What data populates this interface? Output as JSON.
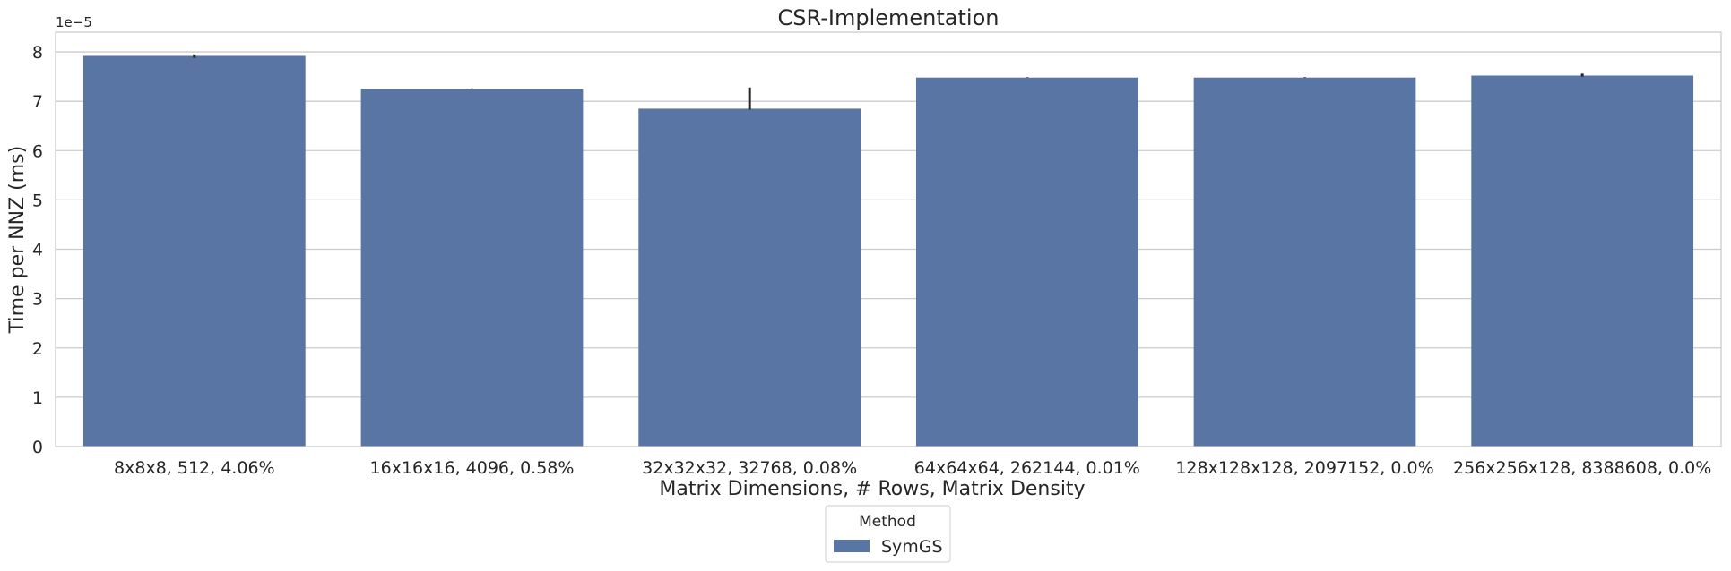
{
  "chart_data": {
    "type": "bar",
    "title": "CSR-Implementation",
    "xlabel": "Matrix Dimensions, # Rows, Matrix Density",
    "ylabel": "Time per NNZ (ms)",
    "y_offset_text": "1e−5",
    "y_scale_factor": 1e-05,
    "ylim": [
      0,
      8.4
    ],
    "yticks": [
      0,
      1,
      2,
      3,
      4,
      5,
      6,
      7,
      8
    ],
    "ytick_labels": [
      "0",
      "1",
      "2",
      "3",
      "4",
      "5",
      "6",
      "7",
      "8"
    ],
    "grid": true,
    "categories": [
      "8x8x8, 512, 4.06%",
      "16x16x16, 4096, 0.58%",
      "32x32x32, 32768, 0.08%",
      "64x64x64, 262144, 0.01%",
      "128x128x128, 2097152, 0.0%",
      "256x256x128, 8388608, 0.0%"
    ],
    "series": [
      {
        "name": "SymGS",
        "color": "#5875a4",
        "values": [
          7.92,
          7.25,
          6.85,
          7.48,
          7.48,
          7.52
        ],
        "error_low": [
          7.88,
          7.25,
          6.83,
          7.48,
          7.48,
          7.5
        ],
        "error_high": [
          7.95,
          7.26,
          7.28,
          7.49,
          7.49,
          7.56
        ]
      }
    ],
    "legend": {
      "title": "Method",
      "placement": "below",
      "entries": [
        "SymGS"
      ]
    }
  }
}
